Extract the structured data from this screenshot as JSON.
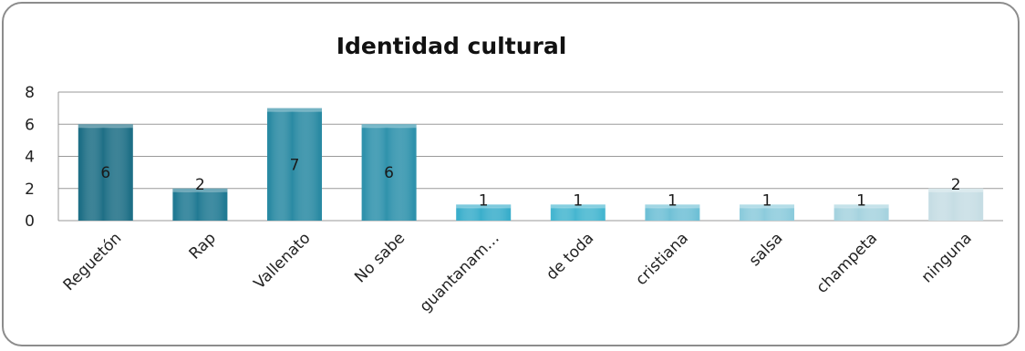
{
  "chart_data": {
    "type": "bar",
    "title": "Identidad cultural",
    "categories": [
      "Reguetón",
      "Rap",
      "Vallenato",
      "No sabe",
      "guantanam…",
      "de toda",
      "cristiana",
      "salsa",
      "champeta",
      "ninguna"
    ],
    "values": [
      6,
      2,
      7,
      6,
      1,
      1,
      1,
      1,
      1,
      2
    ],
    "data_labels": [
      "6",
      "2",
      "7",
      "6",
      "1",
      "1",
      "1",
      "1",
      "1",
      "2"
    ],
    "yticks": [
      "0",
      "2",
      "4",
      "6",
      "8"
    ],
    "ylim": [
      0,
      8
    ],
    "grid": true,
    "legend": "none",
    "xlabel": "",
    "ylabel": "",
    "bar_colors": [
      "#1e6f86",
      "#217a93",
      "#2a8aa3",
      "#2f92ac",
      "#3aaecb",
      "#45b6d0",
      "#6fc0d6",
      "#8ccbdc",
      "#a6d3df",
      "#c6dde4"
    ]
  }
}
